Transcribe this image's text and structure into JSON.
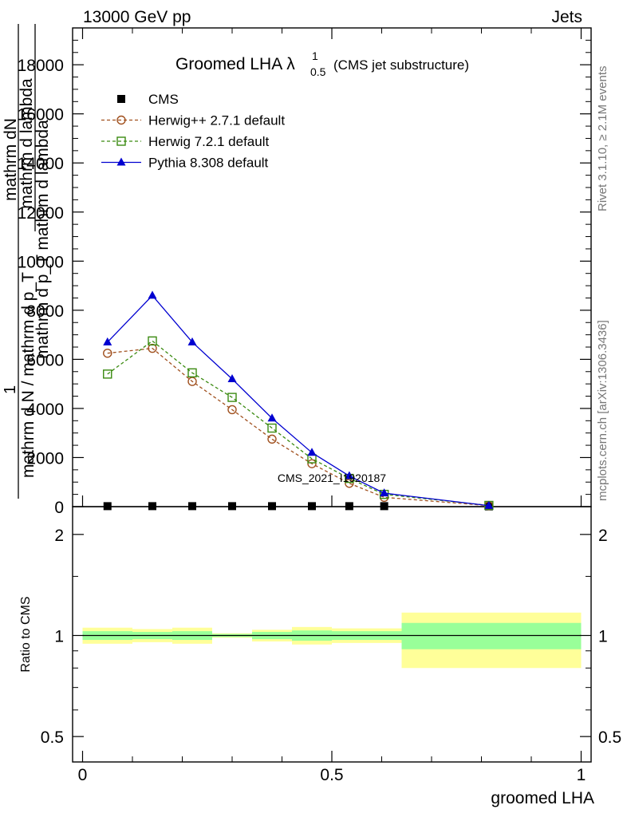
{
  "header": {
    "left": "13000 GeV pp",
    "right": "Jets"
  },
  "plot_title": {
    "main": "Groomed LHA",
    "lambda": "λ",
    "sup": "1",
    "sub": "0.5",
    "paren": "(CMS jet substructure)"
  },
  "side_labels": {
    "rivet": "Rivet 3.1.10, ≥ 2.1M events",
    "mcplots": "mcplots.cern.ch [arXiv:1306.3436]"
  },
  "watermark": "CMS_2021_I1920187",
  "ylabel_main": {
    "one": "1",
    "frac_num": "mathrm dN",
    "frac_den": "mathrm d N / mathrm d p_T",
    "rhs_line1": "mathrm d lambda",
    "rhs_line2": "mathrm d p_T mathrm d lambda"
  },
  "ylabel_ratio": "Ratio to CMS",
  "xlabel": "groomed LHA",
  "colors": {
    "herwig_pp": "#a0501e",
    "herwig7": "#3a8a10",
    "pythia": "#0000d0",
    "band_inner": "#99ff99",
    "band_outer": "#ffff99"
  },
  "chart_data": [
    {
      "type": "line",
      "panel": "main",
      "xlim": [
        -0.02,
        1.02
      ],
      "ylim": [
        0,
        19500
      ],
      "y_ticks": [
        0,
        2000,
        4000,
        6000,
        8000,
        10000,
        12000,
        14000,
        16000,
        18000
      ],
      "y_tick_labels": [
        "0",
        "2000",
        "4000",
        "6000",
        "8000",
        "10000",
        "12000",
        "14000",
        "16000",
        "18000"
      ],
      "legend_position": "top-left",
      "series": [
        {
          "name": "CMS",
          "marker": "filled-square",
          "x": [
            0.05,
            0.14,
            0.22,
            0.3,
            0.38,
            0.46,
            0.535,
            0.605,
            0.815
          ],
          "y": [
            20,
            20,
            20,
            20,
            20,
            20,
            20,
            20,
            10
          ]
        },
        {
          "name": "Herwig++ 2.7.1 default",
          "marker": "open-circle",
          "dashed": true,
          "x": [
            0.05,
            0.14,
            0.22,
            0.3,
            0.38,
            0.46,
            0.535,
            0.605,
            0.815
          ],
          "y": [
            6250,
            6450,
            5100,
            3950,
            2750,
            1750,
            950,
            380,
            40
          ]
        },
        {
          "name": "Herwig 7.2.1 default",
          "marker": "open-square",
          "dashed": true,
          "x": [
            0.05,
            0.14,
            0.22,
            0.3,
            0.38,
            0.46,
            0.535,
            0.605,
            0.815
          ],
          "y": [
            5400,
            6750,
            5450,
            4450,
            3200,
            1950,
            1150,
            500,
            50
          ]
        },
        {
          "name": "Pythia 8.308 default",
          "marker": "filled-triangle",
          "dashed": false,
          "x": [
            0.05,
            0.14,
            0.22,
            0.3,
            0.38,
            0.46,
            0.535,
            0.605,
            0.815
          ],
          "y": [
            6700,
            8600,
            6700,
            5200,
            3600,
            2200,
            1250,
            550,
            40
          ]
        }
      ]
    },
    {
      "type": "area",
      "panel": "ratio",
      "xlim": [
        -0.02,
        1.02
      ],
      "ylim": [
        0.42,
        2.42
      ],
      "y_ticks": [
        0.5,
        1,
        2
      ],
      "y_tick_labels": [
        "0.5",
        "1",
        "2"
      ],
      "x_ticks": [
        0,
        0.5,
        1
      ],
      "x_tick_labels": [
        "0",
        "0.5",
        "1"
      ],
      "reference": 1,
      "bands": [
        {
          "x0": 0.0,
          "x1": 0.1,
          "inner": [
            0.97,
            1.03
          ],
          "outer": [
            0.945,
            1.055
          ]
        },
        {
          "x0": 0.1,
          "x1": 0.18,
          "inner": [
            0.975,
            1.025
          ],
          "outer": [
            0.955,
            1.045
          ]
        },
        {
          "x0": 0.18,
          "x1": 0.26,
          "inner": [
            0.97,
            1.03
          ],
          "outer": [
            0.945,
            1.055
          ]
        },
        {
          "x0": 0.26,
          "x1": 0.34,
          "inner": [
            0.99,
            1.01
          ],
          "outer": [
            0.985,
            1.015
          ]
        },
        {
          "x0": 0.34,
          "x1": 0.42,
          "inner": [
            0.975,
            1.025
          ],
          "outer": [
            0.96,
            1.04
          ]
        },
        {
          "x0": 0.42,
          "x1": 0.5,
          "inner": [
            0.965,
            1.035
          ],
          "outer": [
            0.94,
            1.06
          ]
        },
        {
          "x0": 0.5,
          "x1": 0.64,
          "inner": [
            0.97,
            1.03
          ],
          "outer": [
            0.95,
            1.05
          ]
        },
        {
          "x0": 0.64,
          "x1": 1.0,
          "inner": [
            0.91,
            1.09
          ],
          "outer": [
            0.8,
            1.17
          ]
        }
      ]
    }
  ]
}
